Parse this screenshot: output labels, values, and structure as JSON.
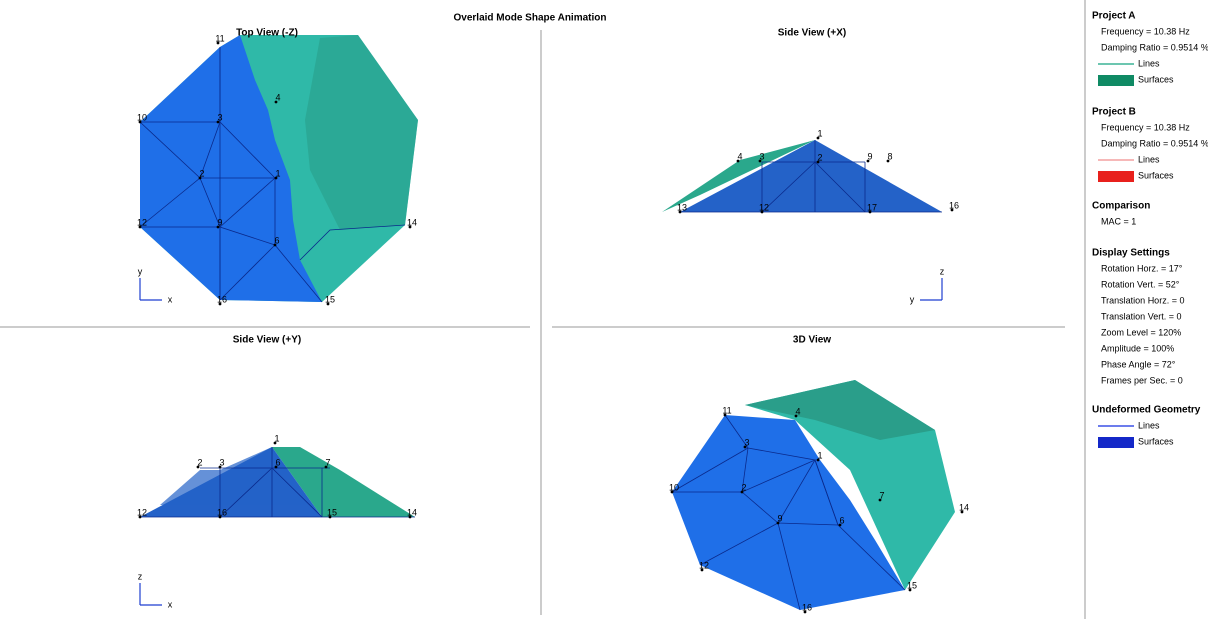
{
  "header": {
    "title": "Overlaid Mode Shape Animation"
  },
  "views": [
    {
      "title": "Top View (-Z)",
      "axes": [
        "y",
        "x"
      ],
      "nodes": [
        "11",
        "4",
        "10",
        "3",
        "1",
        "2",
        "12",
        "9",
        "6",
        "16",
        "15",
        "14"
      ]
    },
    {
      "title": "Side View (+X)",
      "axes": [
        "z",
        "y"
      ],
      "nodes": [
        "1",
        "4",
        "3",
        "2",
        "9",
        "8",
        "13",
        "12",
        "17",
        "16"
      ]
    },
    {
      "title": "Side View (+Y)",
      "axes": [
        "z",
        "x"
      ],
      "nodes": [
        "1",
        "2",
        "3",
        "6",
        "7",
        "12",
        "16",
        "15",
        "14"
      ]
    },
    {
      "title": "3D View",
      "axes": [],
      "nodes": [
        "11",
        "4",
        "3",
        "1",
        "10",
        "2",
        "9",
        "6",
        "7",
        "14",
        "12",
        "15",
        "16"
      ]
    }
  ],
  "sidebar": [
    {
      "heading": "Project A",
      "items": [
        {
          "text": "Frequency = 10.38 Hz"
        },
        {
          "text": "Damping Ratio = 0.9514 %"
        },
        {
          "text": "Lines",
          "swatch": "line",
          "color": "#3cb496"
        },
        {
          "text": "Surfaces",
          "swatch": "rect",
          "color": "#0f8a64"
        }
      ]
    },
    {
      "heading": "Project B",
      "items": [
        {
          "text": "Frequency = 10.38 Hz"
        },
        {
          "text": "Damping Ratio = 0.9514 %"
        },
        {
          "text": "Lines",
          "swatch": "line",
          "color": "#f4a0a0"
        },
        {
          "text": "Surfaces",
          "swatch": "rect",
          "color": "#e8201c"
        }
      ]
    },
    {
      "heading": "Comparison",
      "items": [
        {
          "text": "MAC = 1"
        }
      ]
    },
    {
      "heading": "Display Settings",
      "items": [
        {
          "text": "Rotation Horz. = 17°"
        },
        {
          "text": "Rotation Vert. = 52°"
        },
        {
          "text": "Translation Horz. = 0"
        },
        {
          "text": "Translation Vert. = 0"
        },
        {
          "text": "Zoom Level = 120%"
        },
        {
          "text": "Amplitude = 100%"
        },
        {
          "text": "Phase Angle = 72°"
        },
        {
          "text": "Frames per Sec. = 0"
        }
      ]
    },
    {
      "heading": "Undeformed Geometry",
      "items": [
        {
          "text": "Lines",
          "swatch": "line",
          "color": "#3c50e6"
        },
        {
          "text": "Surfaces",
          "swatch": "rect",
          "color": "#1428c8"
        }
      ]
    }
  ]
}
